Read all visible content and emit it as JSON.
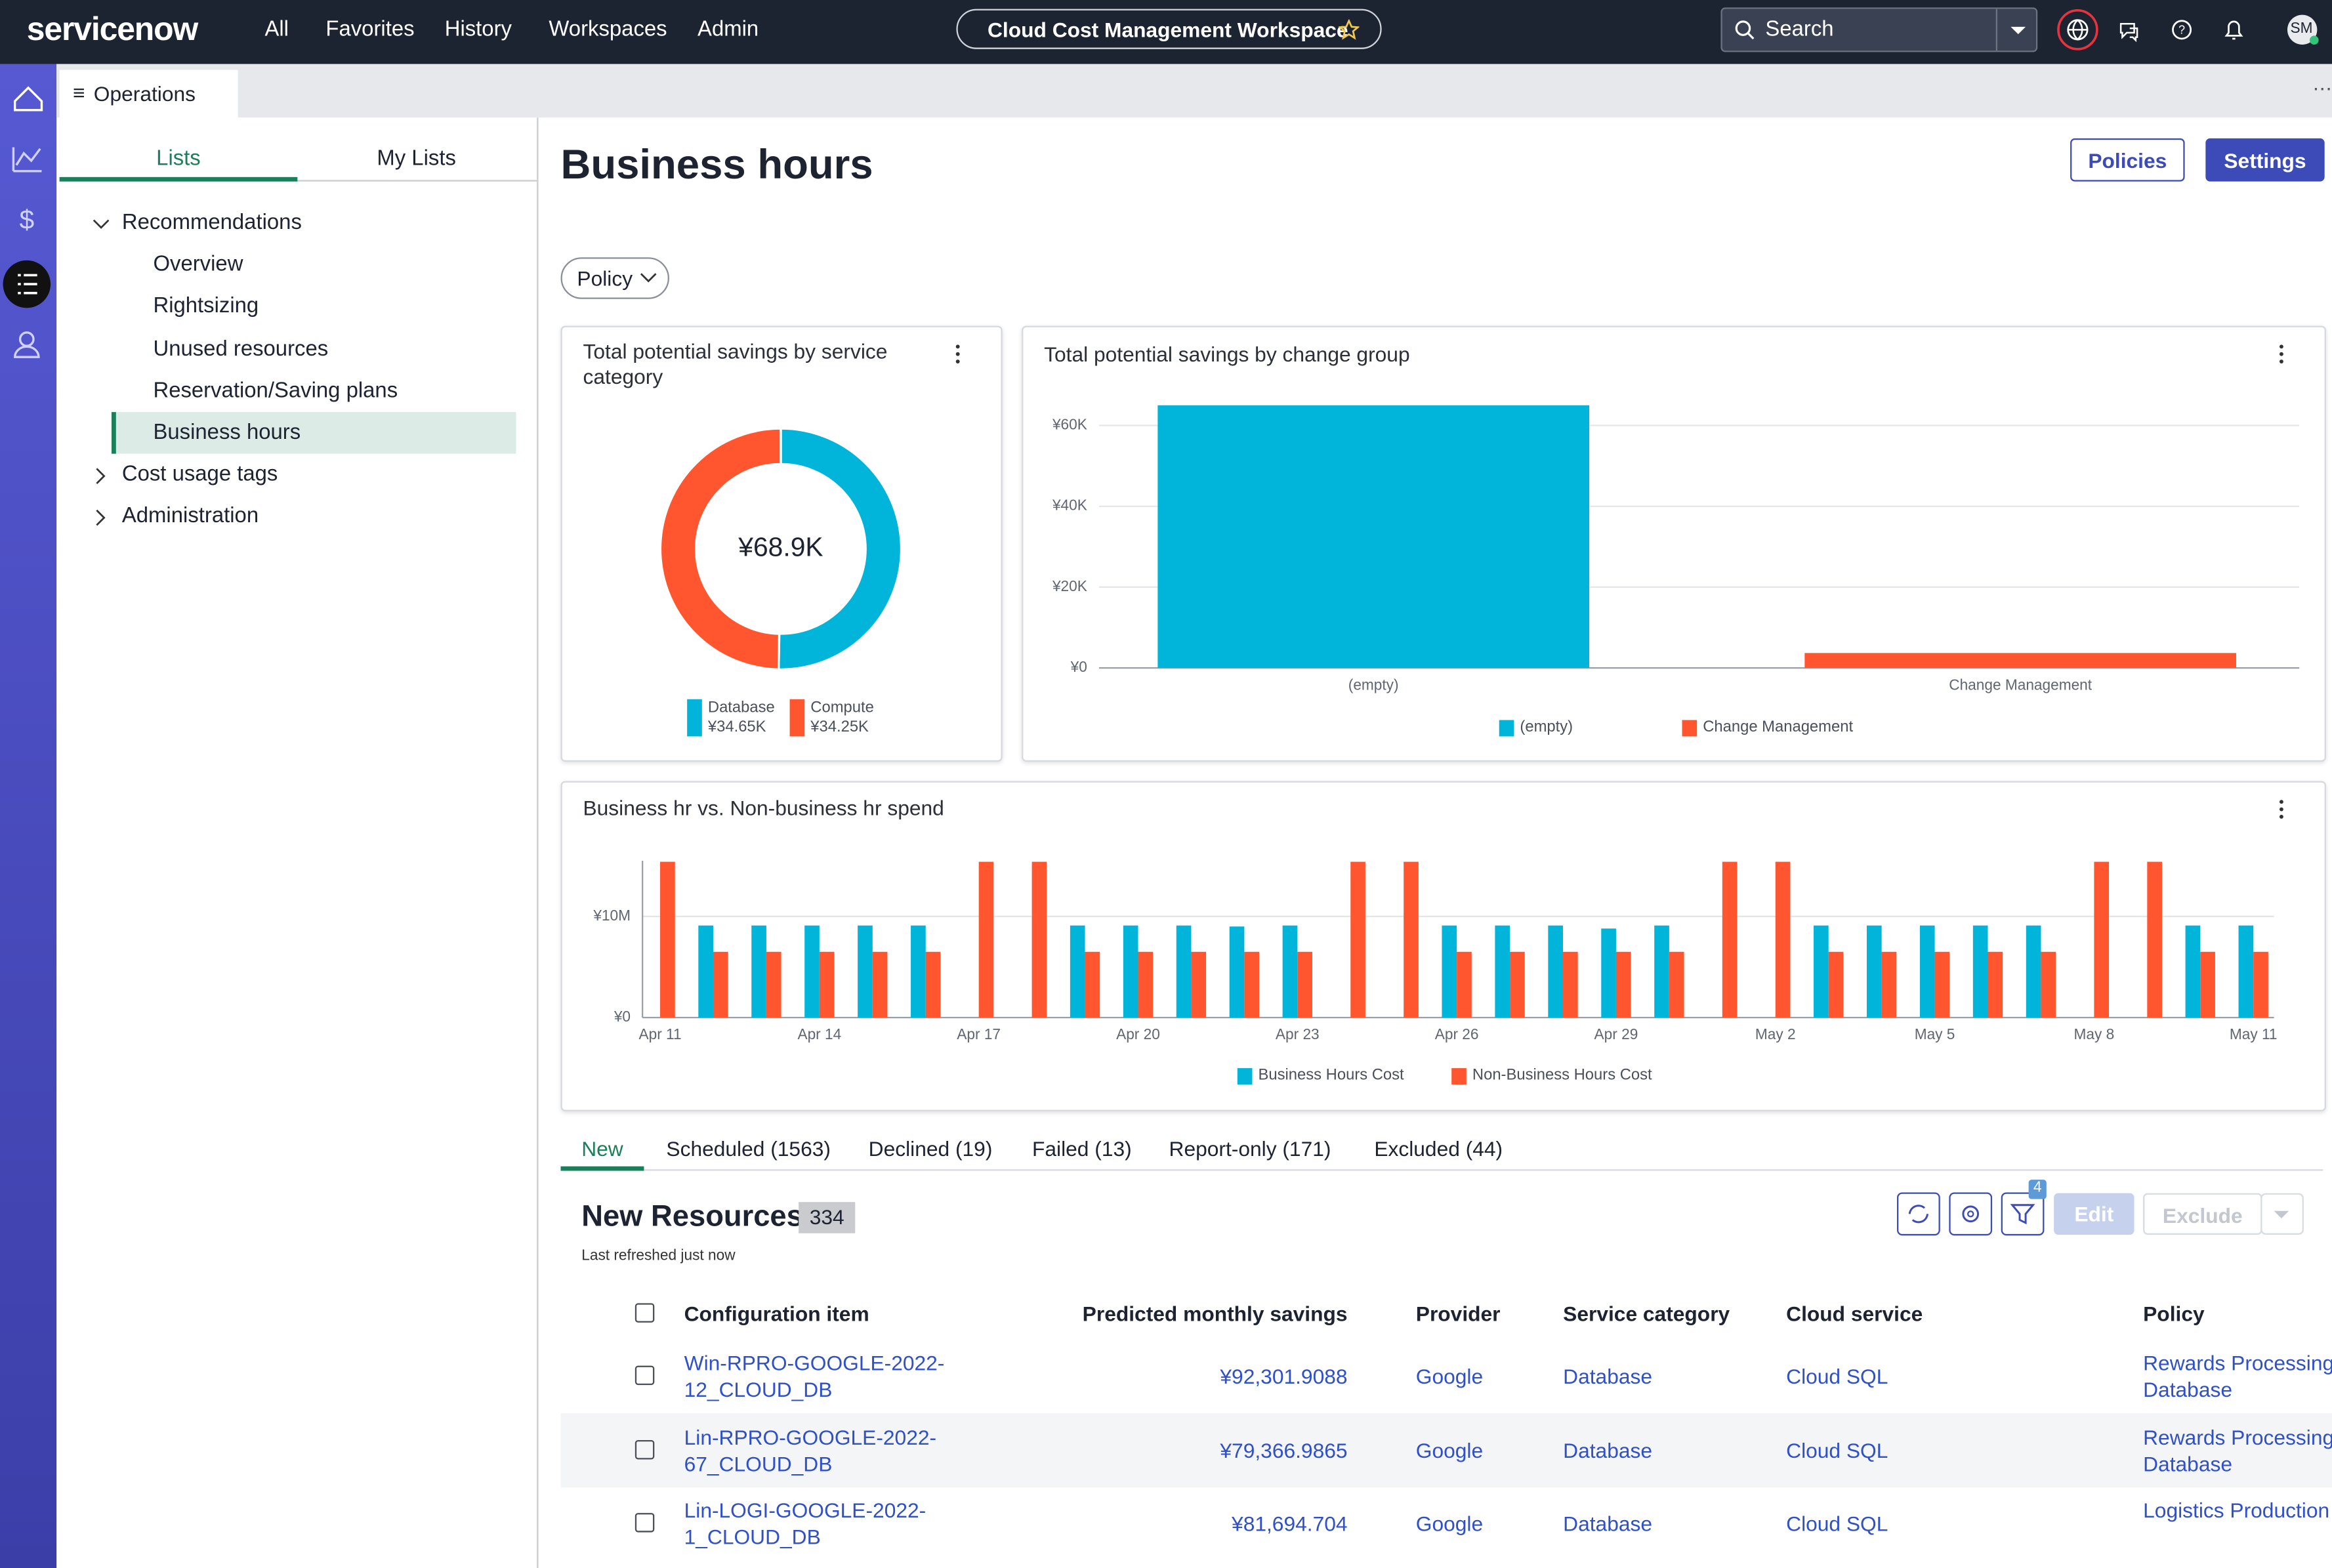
{
  "header": {
    "logo": "servicenow",
    "nav": [
      "All",
      "Favorites",
      "History",
      "Workspaces",
      "Admin"
    ],
    "workspace": "Cloud Cost Management Workspace",
    "search": "Search",
    "avatar": "SM"
  },
  "tab": "Operations",
  "sidebar": {
    "tabs": [
      "Lists",
      "My Lists"
    ],
    "tree": [
      {
        "label": "Recommendations",
        "children": [
          "Overview",
          "Rightsizing",
          "Unused resources",
          "Reservation/Saving plans",
          "Business hours"
        ]
      },
      {
        "label": "Cost usage tags"
      },
      {
        "label": "Administration"
      }
    ]
  },
  "page": {
    "title": "Business hours",
    "buttons": [
      "Policies",
      "Settings"
    ],
    "filter": "Policy"
  },
  "chart_data": [
    {
      "type": "pie",
      "title": "Total potential savings by service category",
      "center_label": "¥68.9K",
      "categories": [
        "Database",
        "Compute"
      ],
      "values": [
        34.65,
        34.25
      ],
      "value_labels": [
        "¥34.65K",
        "¥34.25K"
      ],
      "colors": [
        "#00b5d9",
        "#ff5630"
      ]
    },
    {
      "type": "bar",
      "title": "Total potential savings by change group",
      "categories": [
        "(empty)",
        "Change Management"
      ],
      "values": [
        65000,
        3700
      ],
      "colors": [
        "#00b5d9",
        "#ff5630"
      ],
      "ylim": [
        0,
        65000
      ],
      "yticks": [
        {
          "value": 0,
          "label": "¥0"
        },
        {
          "value": 20000,
          "label": "¥20K"
        },
        {
          "value": 40000,
          "label": "¥40K"
        },
        {
          "value": 60000,
          "label": "¥60K"
        }
      ],
      "grid": true
    },
    {
      "type": "bar",
      "title": "Business hr vs. Non-business hr spend",
      "categories": [
        "Apr 11",
        null,
        null,
        "Apr 14",
        null,
        null,
        "Apr 17",
        null,
        null,
        "Apr 20",
        null,
        null,
        "Apr 23",
        null,
        null,
        "Apr 26",
        null,
        null,
        "Apr 29",
        null,
        null,
        "May 2",
        null,
        null,
        "May 5",
        null,
        null,
        "May 8",
        null,
        null,
        "May 11"
      ],
      "series": [
        {
          "name": "Business Hours Cost",
          "color": "#00b5d9",
          "values": [
            0,
            9100000,
            9100000,
            9100000,
            9100000,
            9100000,
            0,
            0,
            9100000,
            9100000,
            9100000,
            9000000,
            9100000,
            0,
            0,
            9100000,
            9100000,
            9100000,
            8800000,
            9100000,
            0,
            0,
            9100000,
            9100000,
            9100000,
            9100000,
            9100000,
            0,
            0,
            9100000,
            9100000
          ]
        },
        {
          "name": "Non-Business Hours Cost",
          "color": "#ff5630",
          "values": [
            15400000,
            6500000,
            6500000,
            6500000,
            6500000,
            6500000,
            15400000,
            15400000,
            6500000,
            6500000,
            6500000,
            6500000,
            6500000,
            15400000,
            15400000,
            6500000,
            6500000,
            6500000,
            6500000,
            6500000,
            15400000,
            15400000,
            6500000,
            6500000,
            6500000,
            6500000,
            6500000,
            15400000,
            15400000,
            6500000,
            6500000
          ]
        }
      ],
      "ylim": [
        0,
        15500000
      ],
      "yticks": [
        {
          "value": 0,
          "label": "¥0"
        },
        {
          "value": 10000000,
          "label": "¥10M"
        }
      ],
      "grid": true
    }
  ],
  "resources": {
    "tabs": [
      "New",
      "Scheduled (1563)",
      "Declined (19)",
      "Failed (13)",
      "Report-only (171)",
      "Excluded (44)"
    ],
    "title": "New Resources",
    "count": 334,
    "refreshed": "Last refreshed just now",
    "filter_count": 4,
    "actions": [
      "Edit",
      "Exclude"
    ],
    "columns": [
      "Configuration item",
      "Predicted monthly savings",
      "Provider",
      "Service category",
      "Cloud service",
      "Policy"
    ],
    "rows": [
      [
        "Win-RPRO-GOOGLE-2022-12_CLOUD_DB",
        "¥92,301.9088",
        "Google",
        "Database",
        "Cloud SQL",
        "Rewards Processing Database"
      ],
      [
        "Lin-RPRO-GOOGLE-2022-67_CLOUD_DB",
        "¥79,366.9865",
        "Google",
        "Database",
        "Cloud SQL",
        "Rewards Processing Database"
      ],
      [
        "Lin-LOGI-GOOGLE-2022-1_CLOUD_DB",
        "¥81,694.704",
        "Google",
        "Database",
        "Cloud SQL",
        "Logistics Production"
      ]
    ]
  }
}
